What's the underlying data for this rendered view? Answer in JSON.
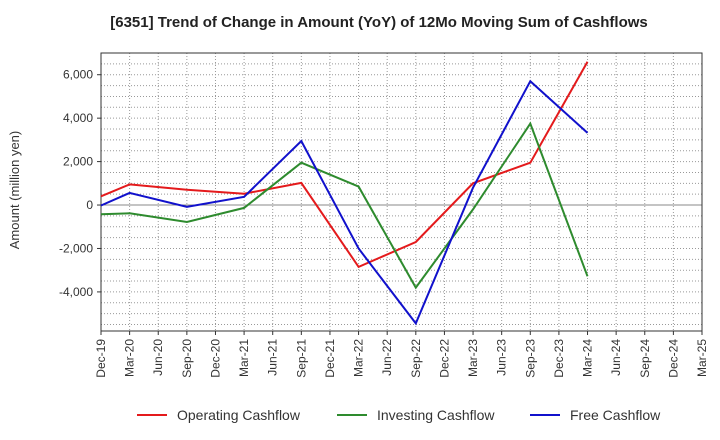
{
  "chart_data": {
    "type": "line",
    "title": "[6351]  Trend of Change in Amount (YoY) of 12Mo Moving Sum of Cashflows",
    "xlabel": "",
    "ylabel": "Amount (million yen)",
    "ylim": [
      -5800,
      7000
    ],
    "yticks": [
      6000,
      4000,
      2000,
      0,
      -2000,
      -4000
    ],
    "ytick_labels": [
      "6,000",
      "4,000",
      "2,000",
      "0",
      "-2,000",
      "-4,000"
    ],
    "categories": [
      "Dec-19",
      "Mar-20",
      "Jun-20",
      "Sep-20",
      "Dec-20",
      "Mar-21",
      "Jun-21",
      "Sep-21",
      "Dec-21",
      "Mar-22",
      "Jun-22",
      "Sep-22",
      "Dec-22",
      "Mar-23",
      "Jun-23",
      "Sep-23",
      "Dec-23",
      "Mar-24",
      "Jun-24",
      "Sep-24",
      "Dec-24",
      "Mar-25"
    ],
    "grid": true,
    "legend_position": "bottom",
    "series": [
      {
        "name": "Operating Cashflow",
        "color": "#e41a1c",
        "values": [
          400,
          950,
          null,
          700,
          null,
          520,
          null,
          1020,
          null,
          -2850,
          null,
          -1700,
          null,
          1000,
          null,
          1950,
          null,
          6600,
          null,
          null,
          null,
          null
        ]
      },
      {
        "name": "Investing Cashflow",
        "color": "#2e8b2e",
        "values": [
          -420,
          -380,
          null,
          -780,
          null,
          -130,
          null,
          1950,
          null,
          850,
          null,
          -3800,
          null,
          -200,
          null,
          3750,
          null,
          -3280,
          null,
          null,
          null,
          null
        ]
      },
      {
        "name": "Free Cashflow",
        "color": "#1111cc",
        "values": [
          -20,
          560,
          null,
          -80,
          null,
          380,
          null,
          2950,
          null,
          -2000,
          null,
          -5450,
          null,
          800,
          null,
          5700,
          null,
          3320,
          null,
          null,
          null,
          null
        ]
      }
    ]
  }
}
